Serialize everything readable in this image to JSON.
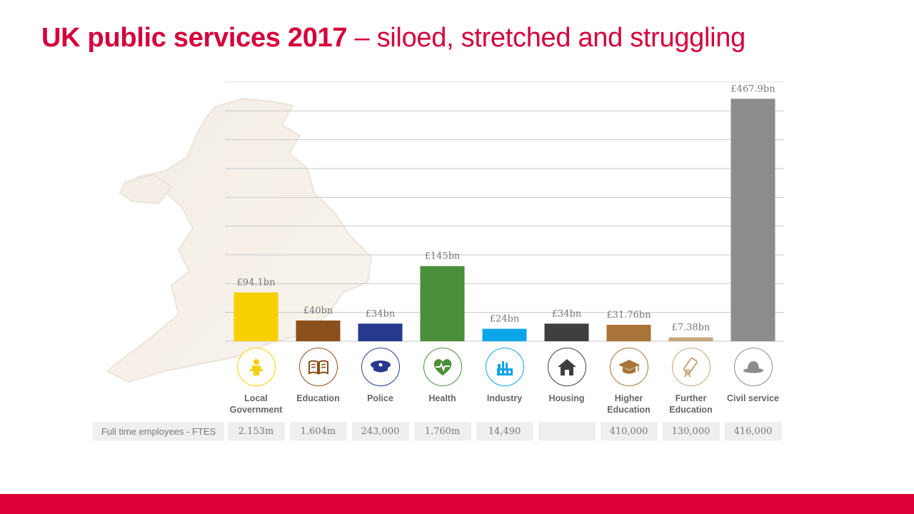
{
  "title": {
    "bold": "UK public services 2017",
    "rest": " – siloed, stretched and struggling"
  },
  "colors": {
    "accent": "#d4003c",
    "footer": "#dc0039",
    "grid": "#c8c8c8"
  },
  "chart_data": {
    "type": "bar",
    "categories": [
      "Local\nGovernment",
      "Education",
      "Police",
      "Health",
      "Industry",
      "Housing",
      "Higher\nEducation",
      "Further\nEducation",
      "Civil service"
    ],
    "values": [
      94.1,
      40,
      34,
      145,
      24,
      34,
      31.76,
      7.38,
      467.9
    ],
    "value_labels": [
      "£94.1bn",
      "£40bn",
      "£34bn",
      "£145bn",
      "£24bn",
      "£34bn",
      "£31.76bn",
      "£7.38bn",
      "£467.9bn"
    ],
    "bar_colors": [
      "#f7d000",
      "#8b4f1b",
      "#283a8f",
      "#4a8f3a",
      "#0aa5e8",
      "#3f3f3f",
      "#a87439",
      "#c8a57c",
      "#8c8c8c"
    ],
    "icon_colors": [
      "#f7d000",
      "#8b4f1b",
      "#283a8f",
      "#4a8f3a",
      "#0aa5e8",
      "#3f3f3f",
      "#a87439",
      "#c8a57c",
      "#8c8c8c"
    ],
    "icons": [
      "speaker-at-lectern-icon",
      "open-book-icon",
      "police-cap-icon",
      "heart-pulse-icon",
      "factory-icon",
      "house-icon",
      "graduation-cap-icon",
      "diploma-scroll-icon",
      "bowler-hat-icon"
    ],
    "ylim": [
      0,
      500
    ],
    "grid": true,
    "title": "",
    "xlabel": "",
    "ylabel": ""
  },
  "fte_table": {
    "header": "Full time employees - FTES",
    "values": [
      "2.153m",
      "1.604m",
      "243,000",
      "1.760m",
      "14,490",
      "",
      "410,000",
      "130,000",
      "416,000"
    ]
  }
}
